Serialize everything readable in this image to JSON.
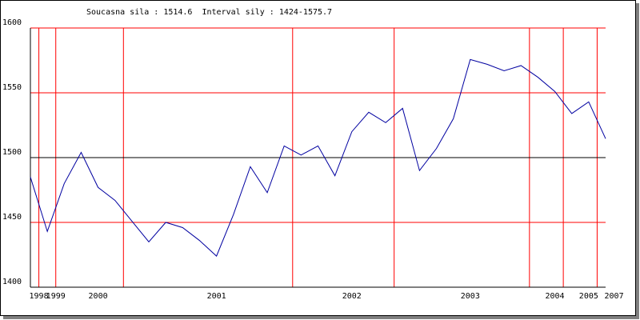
{
  "chart_data": {
    "type": "line",
    "title": "Soucasna sila : 1514.6  Interval sily : 1424-1575.7",
    "x": [
      0,
      1,
      2,
      3,
      4,
      5,
      6,
      7,
      8,
      9,
      10,
      11,
      12,
      13,
      14,
      15,
      16,
      17,
      18,
      19,
      20,
      21,
      22,
      23,
      24,
      25,
      26,
      27,
      28,
      29,
      30,
      31,
      32,
      33,
      34
    ],
    "series": [
      {
        "color": "#0000a0",
        "values": [
          1485,
          1443,
          1480,
          1504,
          1477,
          1467,
          1451,
          1435,
          1450,
          1446,
          1436,
          1424,
          1456,
          1493,
          1473,
          1509,
          1502,
          1509,
          1486,
          1520,
          1535,
          1527,
          1538,
          1490,
          1507,
          1530,
          1575.7,
          1572,
          1567,
          1571,
          1562,
          1551,
          1534,
          1543,
          1514.6
        ]
      }
    ],
    "xlim": [
      0,
      34
    ],
    "xticks": [
      {
        "value": 0.5,
        "label": "1998"
      },
      {
        "value": 1.5,
        "label": "1999"
      },
      {
        "value": 4,
        "label": "2000"
      },
      {
        "value": 11,
        "label": "2001"
      },
      {
        "value": 19,
        "label": "2002"
      },
      {
        "value": 26,
        "label": "2003"
      },
      {
        "value": 31,
        "label": "2004"
      },
      {
        "value": 33,
        "label": "2005"
      },
      {
        "value": 34.5,
        "label": "2007"
      }
    ],
    "xgrid_lines": [
      0.5,
      1.5,
      5.5,
      15.5,
      21.5,
      29.5,
      31.5,
      33.5
    ],
    "ylim": [
      1400,
      1600
    ],
    "yticks": [
      1400,
      1450,
      1500,
      1550,
      1600
    ],
    "grid": true,
    "grid_color": "#ff0000",
    "reference_line": 1500,
    "reference_color": "#000000"
  }
}
